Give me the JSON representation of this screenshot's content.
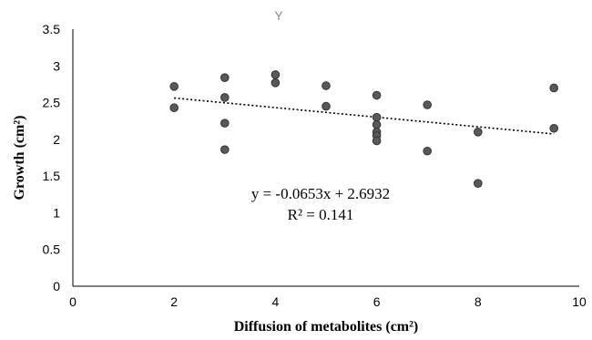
{
  "chart_data": {
    "type": "scatter",
    "title": "Y",
    "xlabel": "Diffusion of metabolites (cm²)",
    "ylabel": "Growth (cm²)",
    "xlim": [
      0,
      10
    ],
    "ylim": [
      0,
      3.5
    ],
    "xticks": [
      0,
      2,
      4,
      6,
      8,
      10
    ],
    "yticks": [
      0,
      0.5,
      1,
      1.5,
      2,
      2.5,
      3,
      3.5
    ],
    "xtick_labels": [
      "0",
      "2",
      "4",
      "6",
      "8",
      "10"
    ],
    "ytick_labels": [
      "0",
      "0.5",
      "1",
      "1.5",
      "2",
      "2.5",
      "3",
      "3.5"
    ],
    "grid": false,
    "legend": "none",
    "marker_color": "#595959",
    "marker_edge_color": "#333333",
    "points": [
      {
        "x": 2,
        "y": 2.72
      },
      {
        "x": 2,
        "y": 2.43
      },
      {
        "x": 3,
        "y": 2.84
      },
      {
        "x": 3,
        "y": 2.57
      },
      {
        "x": 3,
        "y": 2.22
      },
      {
        "x": 3,
        "y": 1.86
      },
      {
        "x": 4,
        "y": 2.88
      },
      {
        "x": 4,
        "y": 2.77
      },
      {
        "x": 5,
        "y": 2.73
      },
      {
        "x": 5,
        "y": 2.45
      },
      {
        "x": 6,
        "y": 2.6
      },
      {
        "x": 6,
        "y": 2.3
      },
      {
        "x": 6,
        "y": 2.2
      },
      {
        "x": 6,
        "y": 2.1
      },
      {
        "x": 6,
        "y": 2.05
      },
      {
        "x": 6,
        "y": 1.98
      },
      {
        "x": 7,
        "y": 2.47
      },
      {
        "x": 7,
        "y": 1.84
      },
      {
        "x": 8,
        "y": 2.1
      },
      {
        "x": 8,
        "y": 1.4
      },
      {
        "x": 9.5,
        "y": 2.7
      },
      {
        "x": 9.5,
        "y": 2.15
      }
    ],
    "trendline": {
      "type": "linear",
      "style": "dotted",
      "slope": -0.0653,
      "intercept": 2.6932,
      "x_start": 2,
      "x_end": 9.5,
      "equation": "y = -0.0653x + 2.6932",
      "r_squared": "R² = 0.141"
    }
  }
}
